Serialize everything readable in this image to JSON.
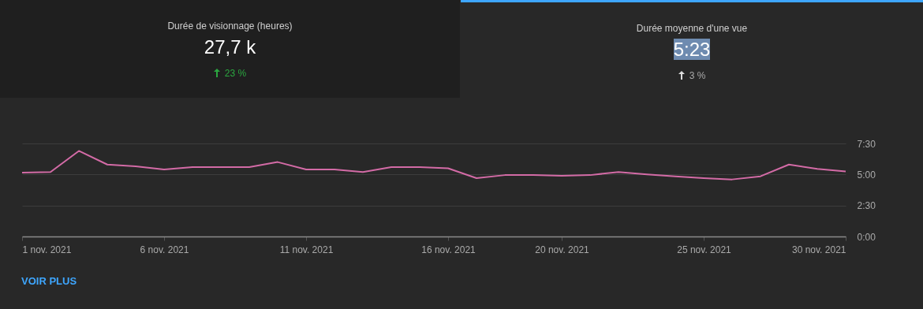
{
  "chart_data": [
    {
      "type": "other",
      "title": "Durée de visionnage (heures)",
      "annotations": [
        "27,7 k",
        "23 %"
      ],
      "color": "#2ba640"
    },
    {
      "type": "other",
      "title": "Durée moyenne d'une vue",
      "annotations": [
        "5:23",
        "3 %"
      ],
      "color": "#aaaaaa"
    },
    {
      "type": "line",
      "x": [
        "2021-11-01",
        "2021-11-02",
        "2021-11-03",
        "2021-11-04",
        "2021-11-05",
        "2021-11-06",
        "2021-11-07",
        "2021-11-08",
        "2021-11-09",
        "2021-11-10",
        "2021-11-11",
        "2021-11-12",
        "2021-11-13",
        "2021-11-14",
        "2021-11-15",
        "2021-11-16",
        "2021-11-17",
        "2021-11-18",
        "2021-11-19",
        "2021-11-20",
        "2021-11-21",
        "2021-11-22",
        "2021-11-23",
        "2021-11-24",
        "2021-11-25",
        "2021-11-26",
        "2021-11-27",
        "2021-11-28",
        "2021-11-29",
        "2021-11-30"
      ],
      "series": [
        {
          "color": "#d36ba6",
          "values": [
            5.15,
            5.2,
            6.9,
            5.8,
            5.65,
            5.4,
            5.6,
            5.6,
            5.6,
            6.0,
            5.4,
            5.4,
            5.2,
            5.6,
            5.6,
            5.5,
            4.7,
            4.95,
            4.95,
            4.9,
            4.95,
            5.2,
            5.0,
            4.85,
            4.7,
            4.6,
            4.85,
            5.8,
            5.45,
            5.25
          ]
        }
      ],
      "xlim": [
        "2021-11-01",
        "2021-11-30"
      ],
      "xticks": [
        {
          "value": "2021-11-01",
          "label": "1 nov. 2021"
        },
        {
          "value": "2021-11-06",
          "label": "6 nov. 2021"
        },
        {
          "value": "2021-11-11",
          "label": "11 nov. 2021"
        },
        {
          "value": "2021-11-16",
          "label": "16 nov. 2021"
        },
        {
          "value": "2021-11-20",
          "label": "20 nov. 2021"
        },
        {
          "value": "2021-11-25",
          "label": "25 nov. 2021"
        },
        {
          "value": "2021-11-30",
          "label": "30 nov. 2021"
        }
      ],
      "ylim": [
        0,
        7.5
      ],
      "yticks": [
        {
          "value": 0,
          "label": "0:00"
        },
        {
          "value": 2.5,
          "label": "2:30"
        },
        {
          "value": 5,
          "label": "5:00"
        },
        {
          "value": 7.5,
          "label": "7:30"
        }
      ],
      "grid": "y",
      "marker": "none",
      "line_style": "solid",
      "annotations": [
        "VOIR PLUS"
      ]
    }
  ]
}
